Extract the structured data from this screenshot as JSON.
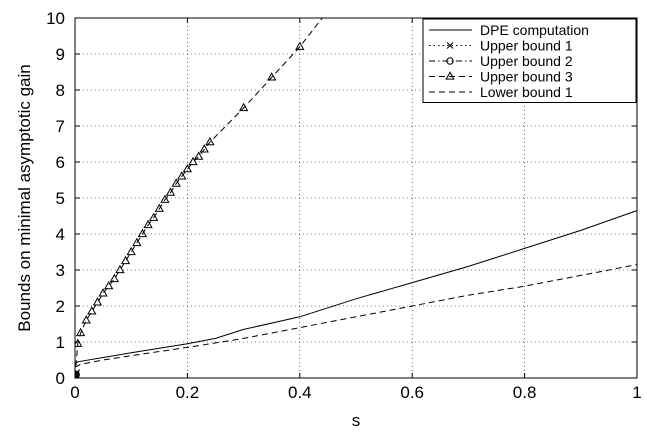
{
  "chart_data": {
    "type": "line",
    "xlabel": "s",
    "ylabel": "Bounds on minimal asymptotic gain",
    "xlim": [
      0,
      1
    ],
    "ylim": [
      0,
      10
    ],
    "xticks": [
      0,
      0.2,
      0.4,
      0.6,
      0.8,
      1
    ],
    "xtick_labels": [
      "0",
      "0.2",
      "0.4",
      "0.6",
      "0.8",
      "1"
    ],
    "yticks": [
      0,
      1,
      2,
      3,
      4,
      5,
      6,
      7,
      8,
      9,
      10
    ],
    "ytick_labels": [
      "0",
      "1",
      "2",
      "3",
      "4",
      "5",
      "6",
      "7",
      "8",
      "9",
      "10"
    ],
    "grid": true,
    "legend_position": "top-right",
    "series": [
      {
        "name": "DPE computation",
        "style": "solid",
        "marker": "none",
        "x": [
          0,
          0.005,
          0.05,
          0.1,
          0.2,
          0.25,
          0.3,
          0.4,
          0.5,
          0.6,
          0.7,
          0.8,
          0.9,
          1.0
        ],
        "y": [
          0.4,
          0.45,
          0.57,
          0.7,
          0.95,
          1.1,
          1.35,
          1.7,
          2.2,
          2.65,
          3.1,
          3.6,
          4.1,
          4.65
        ]
      },
      {
        "name": "Upper bound 1",
        "style": "dotted",
        "marker": "x",
        "x": [
          0,
          0.001,
          0.002,
          0.003
        ],
        "y": [
          0,
          0.05,
          0.1,
          0.15
        ]
      },
      {
        "name": "Upper bound 2",
        "style": "dashdot",
        "marker": "o",
        "x": [
          0,
          0.001,
          0.002
        ],
        "y": [
          0,
          0.05,
          0.1
        ]
      },
      {
        "name": "Upper bound 3",
        "style": "dashed",
        "marker": "triangle",
        "x": [
          0,
          0.005,
          0.01,
          0.02,
          0.03,
          0.04,
          0.05,
          0.06,
          0.07,
          0.08,
          0.09,
          0.1,
          0.11,
          0.12,
          0.13,
          0.14,
          0.15,
          0.16,
          0.17,
          0.18,
          0.19,
          0.2,
          0.21,
          0.22,
          0.23,
          0.24,
          0.3,
          0.35,
          0.4,
          0.44
        ],
        "y": [
          0.05,
          0.95,
          1.25,
          1.6,
          1.85,
          2.1,
          2.35,
          2.55,
          2.75,
          3.0,
          3.25,
          3.5,
          3.75,
          4.0,
          4.25,
          4.45,
          4.7,
          4.95,
          5.15,
          5.4,
          5.6,
          5.8,
          6.0,
          6.15,
          6.35,
          6.55,
          7.5,
          8.35,
          9.2,
          10.0
        ],
        "marker_indices": [
          0,
          1,
          2,
          3,
          4,
          5,
          6,
          7,
          8,
          9,
          10,
          11,
          12,
          13,
          14,
          15,
          16,
          17,
          18,
          19,
          20,
          21,
          22,
          23,
          24,
          25,
          26,
          27,
          28
        ]
      },
      {
        "name": "Lower bound 1",
        "style": "dashed",
        "marker": "none",
        "x": [
          0,
          0.01,
          0.05,
          0.1,
          0.2,
          0.3,
          0.4,
          0.5,
          0.6,
          0.7,
          0.8,
          0.9,
          1.0
        ],
        "y": [
          0.3,
          0.38,
          0.5,
          0.62,
          0.85,
          1.1,
          1.4,
          1.7,
          2.0,
          2.3,
          2.55,
          2.85,
          3.15
        ]
      }
    ]
  }
}
